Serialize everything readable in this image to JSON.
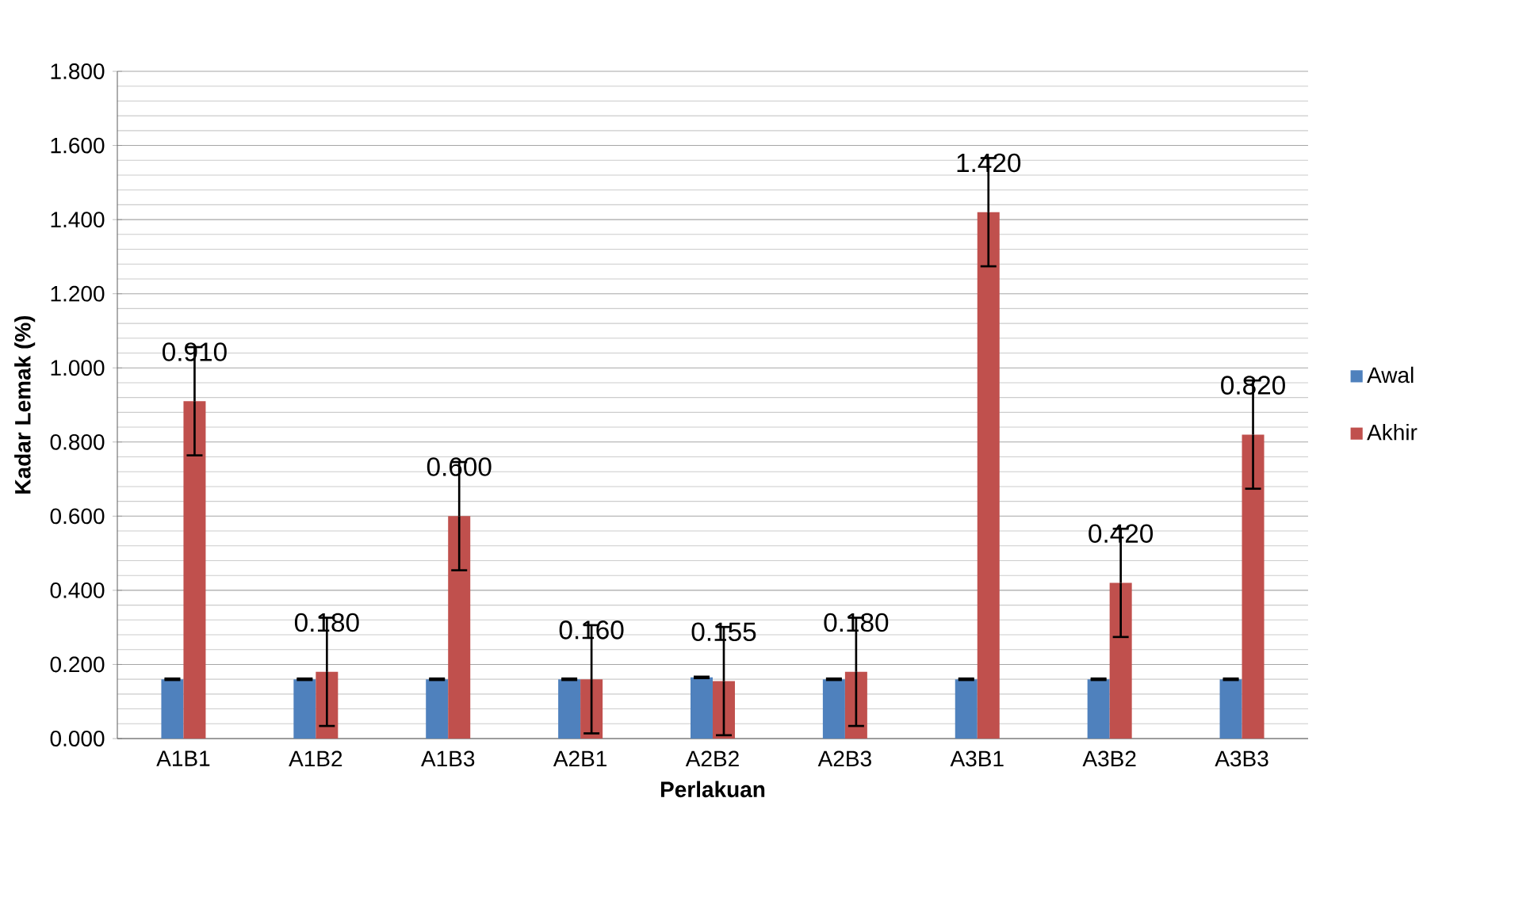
{
  "chart_data": {
    "type": "bar",
    "xlabel": "Perlakuan",
    "ylabel": "Kadar Lemak (%)",
    "categories": [
      "A1B1",
      "A1B2",
      "A1B3",
      "A2B1",
      "A2B2",
      "A2B3",
      "A3B1",
      "A3B2",
      "A3B3"
    ],
    "series": [
      {
        "name": "Awal",
        "color": "#4f81bd",
        "values": [
          0.16,
          0.16,
          0.16,
          0.16,
          0.165,
          0.16,
          0.16,
          0.16,
          0.16
        ],
        "errors": [
          0.002,
          0.002,
          0.002,
          0.002,
          0.002,
          0.002,
          0.002,
          0.002,
          0.002
        ]
      },
      {
        "name": "Akhir",
        "color": "#c0504d",
        "values": [
          0.91,
          0.18,
          0.6,
          0.16,
          0.155,
          0.18,
          1.42,
          0.42,
          0.82
        ],
        "errors": [
          0.146,
          0.146,
          0.146,
          0.146,
          0.146,
          0.146,
          0.146,
          0.146,
          0.146
        ],
        "value_labels": [
          "0.910",
          "0.180",
          "0.600",
          "0.160",
          "0.155",
          "0.180",
          "1.420",
          "0.420",
          "0.820"
        ]
      }
    ],
    "ylim": [
      0,
      1.8
    ],
    "yticks": [
      {
        "value": 0,
        "label": "0.000"
      },
      {
        "value": 0.2,
        "label": "0.200"
      },
      {
        "value": 0.4,
        "label": "0.400"
      },
      {
        "value": 0.6,
        "label": "0.600"
      },
      {
        "value": 0.8,
        "label": "0.800"
      },
      {
        "value": 1.0,
        "label": "1.000"
      },
      {
        "value": 1.2,
        "label": "1.200"
      },
      {
        "value": 1.4,
        "label": "1.400"
      },
      {
        "value": 1.6,
        "label": "1.600"
      },
      {
        "value": 1.8,
        "label": "1.800"
      }
    ],
    "grid": "y",
    "legend": "right"
  }
}
